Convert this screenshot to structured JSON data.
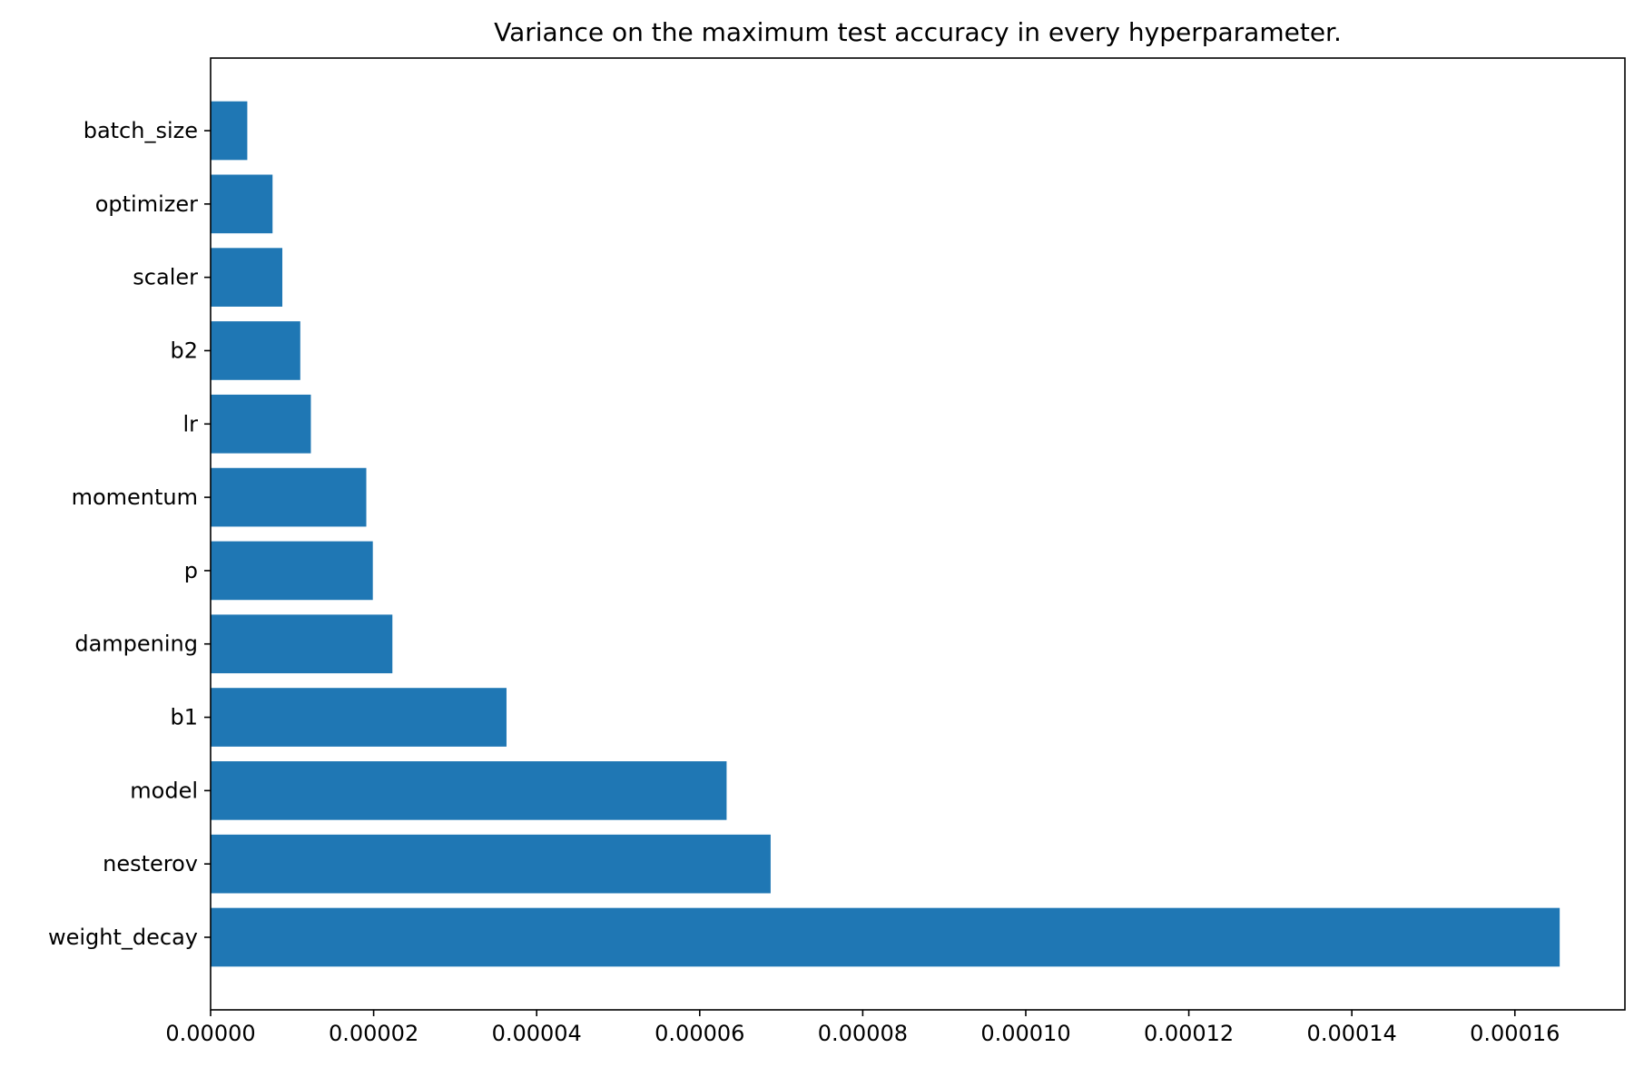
{
  "chart_data": {
    "type": "bar",
    "orientation": "horizontal",
    "title": "Variance on the maximum test accuracy in every hyperparameter.",
    "xlabel": "",
    "ylabel": "",
    "categories": [
      "weight_decay",
      "nesterov",
      "model",
      "b1",
      "dampening",
      "p",
      "momentum",
      "lr",
      "b2",
      "scaler",
      "optimizer",
      "batch_size"
    ],
    "values": [
      0.0001655,
      6.87e-05,
      6.33e-05,
      3.63e-05,
      2.23e-05,
      1.99e-05,
      1.91e-05,
      1.23e-05,
      1.1e-05,
      8.8e-06,
      7.6e-06,
      4.5e-06
    ],
    "xlim": [
      0,
      0.0001735
    ],
    "xticks": [
      0,
      2e-05,
      4e-05,
      6e-05,
      8e-05,
      0.0001,
      0.00012,
      0.00014,
      0.00016
    ],
    "xtick_labels": [
      "0.00000",
      "0.00002",
      "0.00004",
      "0.00006",
      "0.00008",
      "0.00010",
      "0.00012",
      "0.00014",
      "0.00016"
    ],
    "grid": false,
    "legend": "none",
    "bar_color": "#1f77b4"
  }
}
